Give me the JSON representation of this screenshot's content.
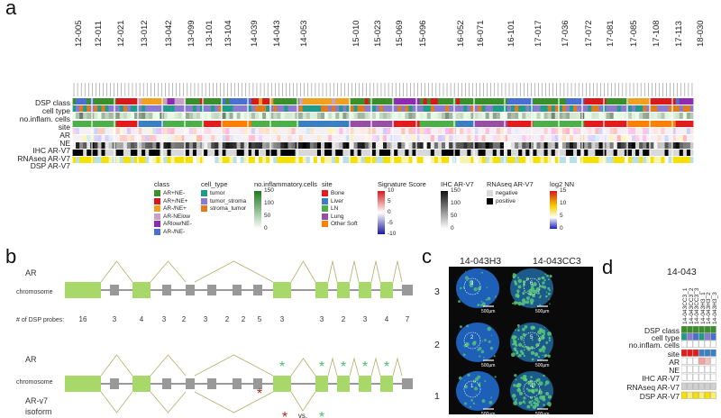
{
  "panel_a": {
    "letter": "a",
    "sample_ids": [
      "12-005",
      "12-011",
      "12-021",
      "13-012",
      "13-042",
      "13-099",
      "13-101",
      "13-104",
      "14-039",
      "14-043",
      "14-053",
      "15-010",
      "15-023",
      "15-069",
      "15-096",
      "16-052",
      "16-071",
      "16-101",
      "17-017",
      "17-036",
      "17-072",
      "17-081",
      "17-085",
      "17-108",
      "17-113",
      "18-030"
    ],
    "row_labels": [
      "DSP class",
      "cell type",
      "no.inflam. cells",
      "site",
      "AR",
      "NE",
      "IHC AR-V7",
      "RNAseq AR-V7",
      "DSP AR-V7"
    ],
    "legend": {
      "class": {
        "title": "class",
        "items": [
          {
            "label": "AR+NE-",
            "color": "#3a8f2a"
          },
          {
            "label": "AR+/NE+",
            "color": "#d7191c"
          },
          {
            "label": "AR-/NE+",
            "color": "#f0a020"
          },
          {
            "label": "AR-NElow",
            "color": "#c9a0c8"
          },
          {
            "label": "ARlow/NE-",
            "color": "#8e2bb0"
          },
          {
            "label": "AR-/NE-",
            "color": "#4a6fd1"
          }
        ]
      },
      "cell_type": {
        "title": "cell_type",
        "items": [
          {
            "label": "tumor",
            "color": "#1f9b8a"
          },
          {
            "label": "tumor_stroma",
            "color": "#8a7bd0"
          },
          {
            "label": "stroma_tumor",
            "color": "#e07a1f"
          }
        ]
      },
      "inflam": {
        "title": "no.inflammatory.cells",
        "ticks": [
          "150",
          "100",
          "50",
          "0"
        ]
      },
      "site": {
        "title": "site",
        "items": [
          {
            "label": "Bone",
            "color": "#e41a1c"
          },
          {
            "label": "Liver",
            "color": "#3a7fc1"
          },
          {
            "label": "LN",
            "color": "#4daf4a"
          },
          {
            "label": "Lung",
            "color": "#984ea3"
          },
          {
            "label": "Other Soft",
            "color": "#ff7f00"
          }
        ]
      },
      "signature": {
        "title": "Signature Score",
        "ticks": [
          "10",
          "5",
          "0",
          "-5",
          "-10"
        ]
      },
      "ihc": {
        "title": "IHC AR-V7",
        "ticks": [
          "150",
          "100",
          "50",
          "0"
        ]
      },
      "rnaseq": {
        "title": "RNAseq AR-V7",
        "items": [
          {
            "label": "negative",
            "color": "#d9d9d9"
          },
          {
            "label": "positive",
            "color": "#000000"
          }
        ]
      },
      "log2nn": {
        "title": "log2 NN",
        "ticks": [
          "15",
          "10",
          "5",
          "0"
        ]
      }
    }
  },
  "panel_b": {
    "letter": "b",
    "top_label": "AR",
    "chromosome_label": "chromosome",
    "probes_label": "# of DSP probes:",
    "probe_counts": [
      "16",
      "3",
      "4",
      "3",
      "2",
      "3",
      "2",
      "2",
      "5",
      "3",
      "3",
      "2",
      "3",
      "4",
      "7"
    ],
    "bottom_label": "AR",
    "bottom_chromosome_label": "chromosome",
    "isoform_label_1": "AR-v7",
    "isoform_label_2": "isoform",
    "vs_label": "vs.",
    "star_glyph": "*",
    "star_red": "#a52a1a",
    "star_green": "#4cbb6a",
    "exon_color": "#a8d86a",
    "intron_color": "#999999"
  },
  "panel_c": {
    "letter": "c",
    "col_labels": [
      "14-043H3",
      "14-043CC3"
    ],
    "row_labels": [
      "3",
      "2",
      "1"
    ],
    "scale_label": "500µm"
  },
  "panel_d": {
    "letter": "d",
    "title": "14-043",
    "col_ids": [
      "14-043CC3_1",
      "14-043CC3_2",
      "14-043CC3_3",
      "14-043H3_1",
      "14-043H3_2",
      "14-043H3_3"
    ],
    "row_labels": [
      "DSP class",
      "cell type",
      "no.inflam. cells",
      "site",
      "AR",
      "NE",
      "IHC AR-V7",
      "RNAseq AR-V7",
      "DSP AR-V7"
    ]
  }
}
